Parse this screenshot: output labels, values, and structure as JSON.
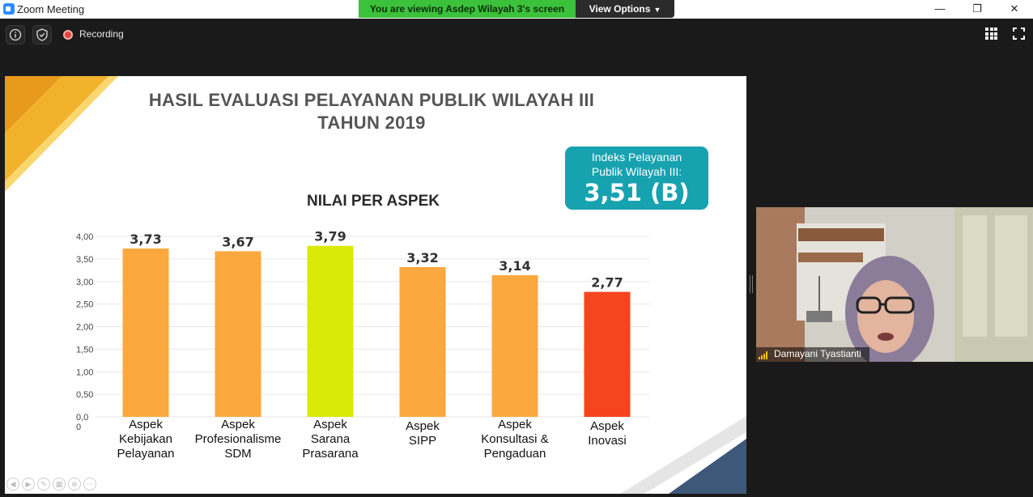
{
  "window": {
    "title": "Zoom Meeting",
    "minimize": "—",
    "maximize": "❐",
    "close": "✕"
  },
  "share_banner": {
    "text": "You are viewing Asdep Wilayah 3's screen",
    "view_options": "View Options"
  },
  "toolbar": {
    "info_icon": "info-icon",
    "shield_icon": "shield-icon",
    "recording_label": "Recording"
  },
  "slide": {
    "title_line1": "HASIL EVALUASI PELAYANAN PUBLIK WILAYAH III",
    "title_line2": "TAHUN 2019",
    "index_label_line1": "Indeks Pelayanan",
    "index_label_line2": "Publik Wilayah III:",
    "index_value": "3,51 (B)",
    "accent_color": "#f2b22c",
    "index_box_color": "#17a2b0"
  },
  "chart_data": {
    "type": "bar",
    "title": "NILAI PER ASPEK",
    "categories": [
      [
        "Aspek",
        "Kebijakan",
        "Pelayanan"
      ],
      [
        "Aspek",
        "Profesionalisme",
        "SDM"
      ],
      [
        "Aspek",
        "Sarana",
        "Prasarana"
      ],
      [
        "Aspek",
        "SIPP"
      ],
      [
        "Aspek",
        "Konsultasi &",
        "Pengaduan"
      ],
      [
        "Aspek",
        "Inovasi"
      ]
    ],
    "values": [
      3.73,
      3.67,
      3.79,
      3.32,
      3.14,
      2.77
    ],
    "value_labels": [
      "3,73",
      "3,67",
      "3,79",
      "3,32",
      "3,14",
      "2,77"
    ],
    "colors": [
      "#fba83e",
      "#fba83e",
      "#d9ea07",
      "#fba83e",
      "#fba83e",
      "#f4451e"
    ],
    "yticks": [
      "0,0\n0",
      "0,50",
      "1,00",
      "1,50",
      "2,00",
      "2,50",
      "3,00",
      "3,50",
      "4,00"
    ],
    "ylim": [
      0,
      4
    ],
    "grid": true
  },
  "participant": {
    "name": "Damayani Tyastianti"
  }
}
